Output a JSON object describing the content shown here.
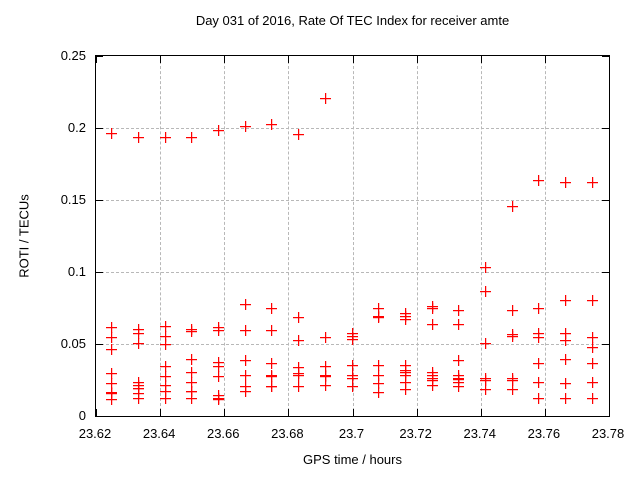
{
  "colors": {
    "marker": "#ff0000",
    "grid": "#b8b8b8",
    "border": "#000000",
    "background": "#ffffff",
    "text": "#000000"
  },
  "chart_data": {
    "type": "scatter",
    "title": "Day 031 of 2016, Rate Of TEC Index for receiver amte",
    "xlabel": "GPS time / hours",
    "ylabel": "ROTI / TECUs",
    "xlim": [
      23.62,
      23.78
    ],
    "ylim": [
      0,
      0.25
    ],
    "grid": true,
    "legend": "none",
    "marker": "plus",
    "xticks": {
      "values": [
        23.62,
        23.64,
        23.66,
        23.68,
        23.7,
        23.72,
        23.74,
        23.76,
        23.78
      ],
      "labels": [
        "23.62",
        "23.64",
        "23.66",
        "23.68",
        "23.7",
        "23.72",
        "23.74",
        "23.76",
        "23.78"
      ]
    },
    "yticks": {
      "values": [
        0,
        0.05,
        0.1,
        0.15,
        0.2,
        0.25
      ],
      "labels": [
        "0",
        "0.05",
        "0.1",
        "0.15",
        "0.2",
        "0.25"
      ]
    },
    "series": [
      {
        "name": "ROTI",
        "epochs": [
          {
            "t": 23.625,
            "v": [
              0.196,
              0.061,
              0.054,
              0.046,
              0.029,
              0.022,
              0.016,
              0.015,
              0.011
            ]
          },
          {
            "t": 23.6333,
            "v": [
              0.193,
              0.06,
              0.057,
              0.05,
              0.023,
              0.021,
              0.019,
              0.019,
              0.015,
              0.012
            ]
          },
          {
            "t": 23.6417,
            "v": [
              0.193,
              0.062,
              0.055,
              0.049,
              0.034,
              0.027,
              0.021,
              0.017,
              0.012
            ]
          },
          {
            "t": 23.65,
            "v": [
              0.193,
              0.06,
              0.058,
              0.039,
              0.03,
              0.023,
              0.017,
              0.017,
              0.012
            ]
          },
          {
            "t": 23.6583,
            "v": [
              0.198,
              0.061,
              0.059,
              0.037,
              0.034,
              0.027,
              0.014,
              0.012,
              0.011
            ]
          },
          {
            "t": 23.6667,
            "v": [
              0.201,
              0.077,
              0.059,
              0.038,
              0.028,
              0.02,
              0.017
            ]
          },
          {
            "t": 23.675,
            "v": [
              0.202,
              0.074,
              0.059,
              0.036,
              0.028,
              0.027,
              0.02,
              0.02
            ]
          },
          {
            "t": 23.6833,
            "v": [
              0.195,
              0.068,
              0.052,
              0.033,
              0.029,
              0.028,
              0.02
            ]
          },
          {
            "t": 23.6917,
            "v": [
              0.22,
              0.054,
              0.034,
              0.028,
              0.027,
              0.021
            ]
          },
          {
            "t": 23.7,
            "v": [
              0.057,
              0.055,
              0.053,
              0.035,
              0.028,
              0.026,
              0.02
            ]
          },
          {
            "t": 23.7083,
            "v": [
              0.074,
              0.069,
              0.068,
              0.035,
              0.028,
              0.022,
              0.016
            ]
          },
          {
            "t": 23.7167,
            "v": [
              0.071,
              0.069,
              0.067,
              0.035,
              0.031,
              0.03,
              0.028,
              0.023,
              0.018
            ]
          },
          {
            "t": 23.725,
            "v": [
              0.076,
              0.074,
              0.063,
              0.03,
              0.028,
              0.026,
              0.024,
              0.021
            ]
          },
          {
            "t": 23.7333,
            "v": [
              0.073,
              0.063,
              0.038,
              0.028,
              0.026,
              0.025,
              0.023,
              0.02
            ]
          },
          {
            "t": 23.7417,
            "v": [
              0.103,
              0.086,
              0.05,
              0.026,
              0.024,
              0.018
            ]
          },
          {
            "t": 23.75,
            "v": [
              0.145,
              0.073,
              0.056,
              0.055,
              0.026,
              0.024,
              0.018
            ]
          },
          {
            "t": 23.7583,
            "v": [
              0.163,
              0.074,
              0.057,
              0.054,
              0.036,
              0.023,
              0.012
            ]
          },
          {
            "t": 23.7667,
            "v": [
              0.162,
              0.08,
              0.057,
              0.052,
              0.039,
              0.022,
              0.012
            ]
          },
          {
            "t": 23.775,
            "v": [
              0.162,
              0.08,
              0.054,
              0.047,
              0.036,
              0.023,
              0.012
            ]
          }
        ]
      }
    ]
  }
}
